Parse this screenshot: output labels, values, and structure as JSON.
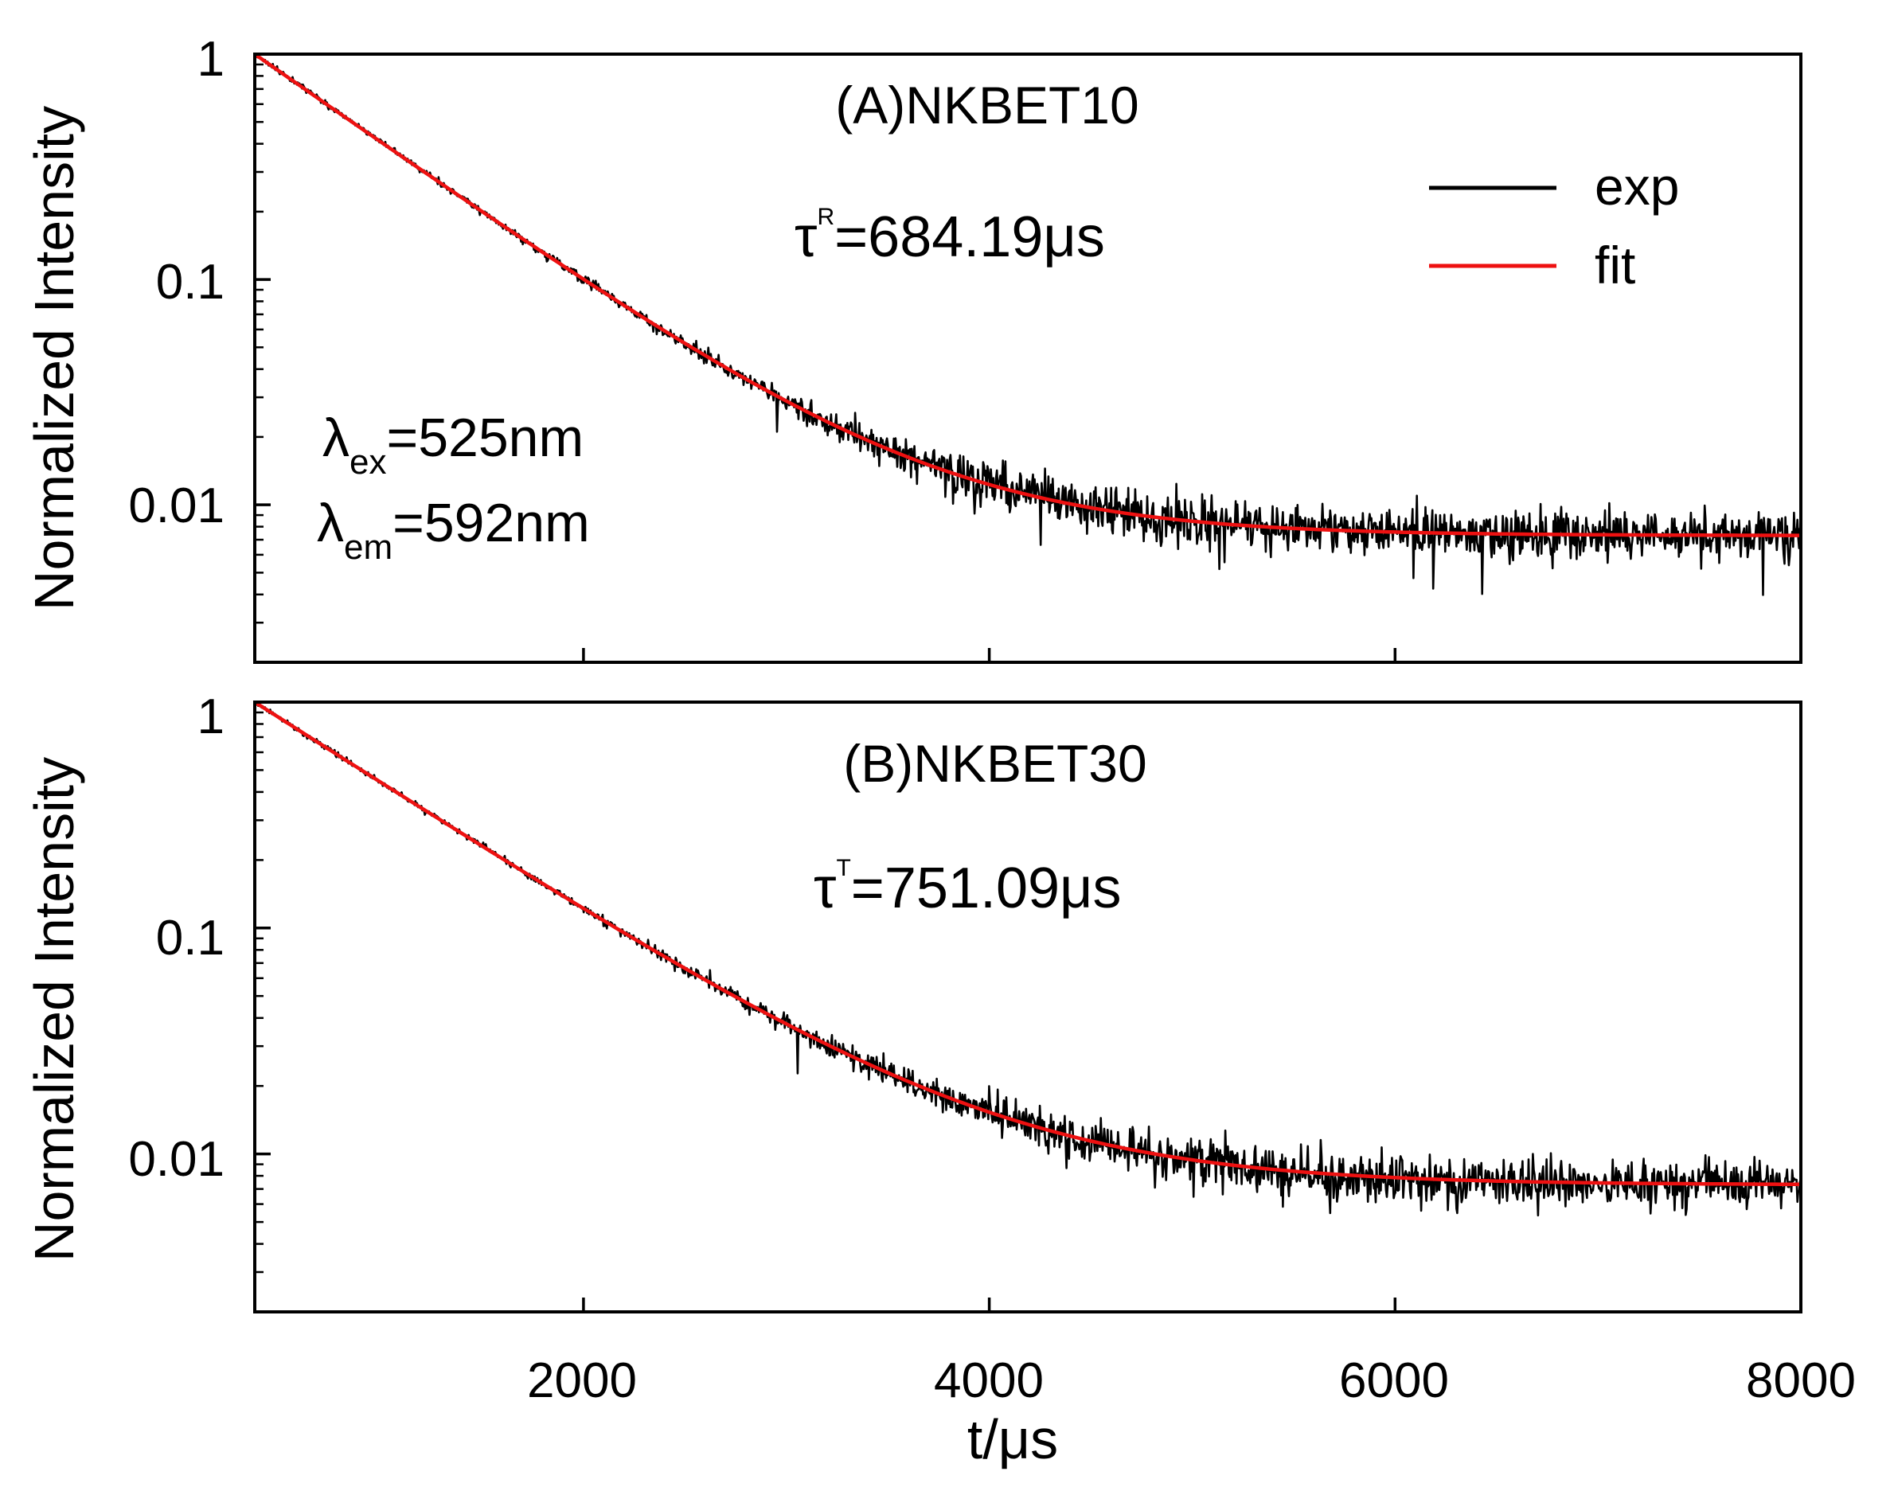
{
  "chart_data": [
    {
      "type": "line",
      "panel": "A",
      "title": "(A)NKBET10",
      "lifetime": {
        "prefix": "τ",
        "superscript": "R",
        "value": "=684.19μs",
        "tau_us": 684.19
      },
      "excitation": {
        "symbol": "λ",
        "subscript": "ex",
        "value": "=525nm"
      },
      "emission": {
        "symbol": "λ",
        "subscript": "em",
        "value": "=592nm"
      },
      "ylabel": "Normalized Intensity",
      "yscale": "log",
      "ylim": [
        0.002,
        1.0
      ],
      "yticks": [
        1,
        0.1,
        0.01
      ],
      "ytick_labels": [
        "1",
        "0.1",
        "0.01"
      ],
      "xlim": [
        380,
        8000
      ],
      "xticks": [
        2000,
        4000,
        6000,
        8000
      ],
      "baseline": 0.0073,
      "noise_level": 0.11,
      "series": [
        {
          "name": "exp",
          "color": "#000000",
          "kind": "noisy decay"
        },
        {
          "name": "fit",
          "color": "#ee1111",
          "kind": "single exponential + baseline"
        }
      ],
      "legend": {
        "position": "top-right",
        "entries": [
          "exp",
          "fit"
        ]
      }
    },
    {
      "type": "line",
      "panel": "B",
      "title": "(B)NKBET30",
      "lifetime": {
        "prefix": "τ",
        "superscript": "T",
        "value": "=751.09μs",
        "tau_us": 751.09
      },
      "ylabel": "Normalized Intensity",
      "xlabel": "t/μs",
      "yscale": "log",
      "ylim": [
        0.002,
        1.0
      ],
      "yticks": [
        1,
        0.1,
        0.01
      ],
      "ytick_labels": [
        "1",
        "0.1",
        "0.01"
      ],
      "xlim": [
        380,
        8000
      ],
      "xticks": [
        2000,
        4000,
        6000,
        8000
      ],
      "xtick_labels": [
        "2000",
        "4000",
        "6000",
        "8000"
      ],
      "baseline": 0.0073,
      "noise_level": 0.11,
      "series": [
        {
          "name": "exp",
          "color": "#000000",
          "kind": "noisy decay"
        },
        {
          "name": "fit",
          "color": "#ee1111",
          "kind": "single exponential + baseline"
        }
      ]
    }
  ]
}
